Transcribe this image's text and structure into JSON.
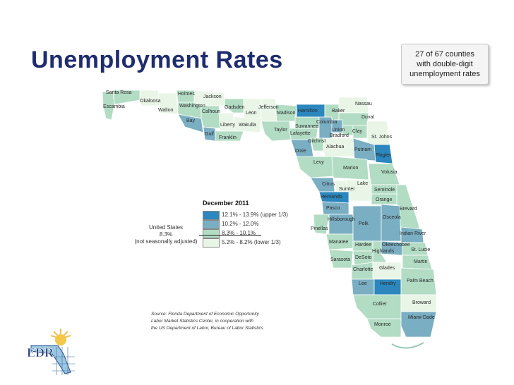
{
  "slide": {
    "title": "Unemployment Rates",
    "callout": {
      "line1": "27 of 67 counties",
      "line2": "with double-digit",
      "line3": "unemployment rates"
    }
  },
  "legend": {
    "title": "December 2011",
    "classes": [
      {
        "label": "12.1% - 13.9%",
        "color": "#2b87bd",
        "note": "(upper 1/3)"
      },
      {
        "label": "10.2% - 12.0%",
        "color": "#7aaec2",
        "note": ""
      },
      {
        "label": "8.3% - 10.1%",
        "color": "#b2dcc4",
        "note": ""
      },
      {
        "label": "5.2% - 8.2%",
        "color": "#e9f5e6",
        "note": "(lower 1/3)"
      }
    ],
    "us_label": "United States",
    "us_value": "8.3%",
    "us_note": "(not seasonally adjusted)"
  },
  "source": {
    "line1": "Source: Florida Department of Economic Opportunity",
    "line2": "Labor Market Statistics Center, in cooperation with",
    "line3": "the US Department of Labor, Bureau of Labor Statistics"
  },
  "counties": {
    "santa_rosa": "Santa Rosa",
    "escambia": "Escambia",
    "okaloosa": "Okaloosa",
    "walton": "Walton",
    "holmes": "Holmes",
    "jackson": "Jackson",
    "washington": "Washington",
    "bay": "Bay",
    "calhoun": "Calhoun",
    "gulf": "Gulf",
    "franklin": "Franklin",
    "liberty": "Liberty",
    "gadsden": "Gadsden",
    "leon": "Leon",
    "wakulla": "Wakulla",
    "jefferson": "Jefferson",
    "madison": "Madison",
    "hamilton": "Hamilton",
    "baker": "Baker",
    "nassau": "Nassau",
    "duval": "Duval",
    "taylor": "Taylor",
    "suwannee": "Suwannee",
    "lafayette": "Lafayette",
    "columbia": "Columbia",
    "union": "Union",
    "bradford": "Bradford",
    "clay": "Clay",
    "st_johns": "St. Johns",
    "dixie": "Dixie",
    "gilchrist": "Gilchrist",
    "alachua": "Alachua",
    "putnam": "Putnam",
    "flagler": "Flagler",
    "levy": "Levy",
    "marion": "Marion",
    "volusia": "Volusia",
    "citrus": "Citrus",
    "sumter": "Sumter",
    "lake": "Lake",
    "seminole": "Seminole",
    "hernando": "Hernando",
    "orange": "Orange",
    "pasco": "Pasco",
    "brevard": "Brevard",
    "pinellas": "Pinellas",
    "hillsborough": "Hillsborough",
    "polk": "Polk",
    "osceola": "Osceola",
    "indian_river": "Indian River",
    "manatee": "Manatee",
    "hardee": "Hardee",
    "okeechobee": "Okeechobee",
    "highlands": "Highlands",
    "st_lucie": "St. Lucie",
    "martin": "Martin",
    "sarasota": "Sarasota",
    "desoto": "DeSoto",
    "charlotte": "Charlotte",
    "glades": "Glades",
    "lee": "Lee",
    "hendry": "Hendry",
    "palm_beach": "Palm Beach",
    "broward": "Broward",
    "collier": "Collier",
    "monroe": "Monroe",
    "miami_dade": "Miami-Dade"
  },
  "logo": {
    "text": "EDR"
  }
}
